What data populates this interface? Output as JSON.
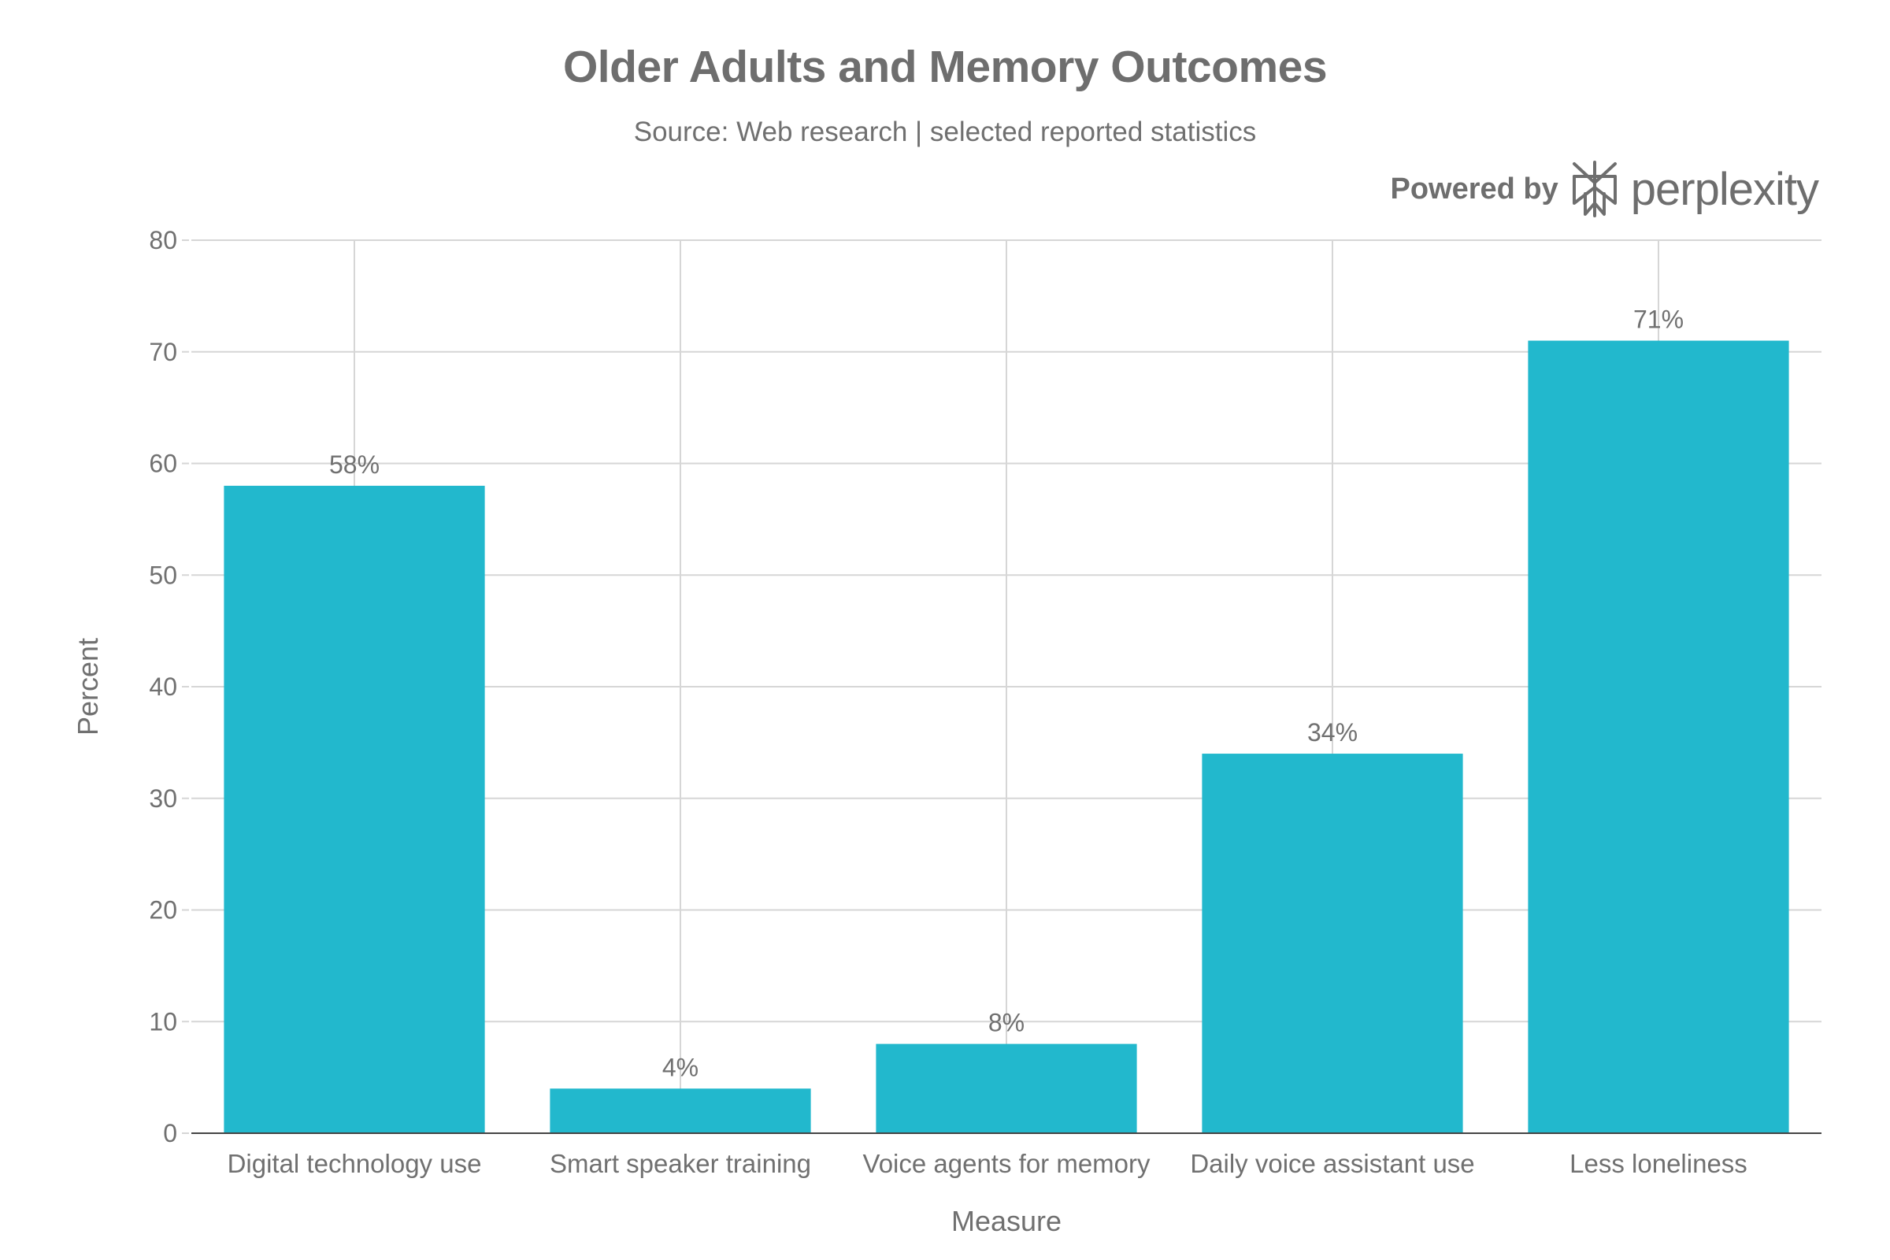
{
  "chart_data": {
    "type": "bar",
    "title": "Older Adults and Memory Outcomes",
    "subtitle": "Source: Web research | selected reported statistics",
    "xlabel": "Measure",
    "ylabel": "Percent",
    "categories": [
      "Digital technology use",
      "Smart speaker training",
      "Voice agents for memory",
      "Daily voice assistant use",
      "Less loneliness"
    ],
    "values": [
      58,
      4,
      8,
      34,
      71
    ],
    "data_labels": [
      "58%",
      "4%",
      "8%",
      "34%",
      "71%"
    ],
    "ylim": [
      0,
      80
    ],
    "yticks": [
      0,
      10,
      20,
      30,
      40,
      50,
      60,
      70,
      80
    ],
    "grid": true,
    "bar_color": "#22b8cd"
  },
  "branding": {
    "prefix": "Powered by",
    "name": "perplexity",
    "logo_icon": "perplexity-logo-icon"
  },
  "colors": {
    "bar": "#22b8cd",
    "gridline": "#d6d6d6",
    "axis": "#444444",
    "text": "#707070"
  }
}
